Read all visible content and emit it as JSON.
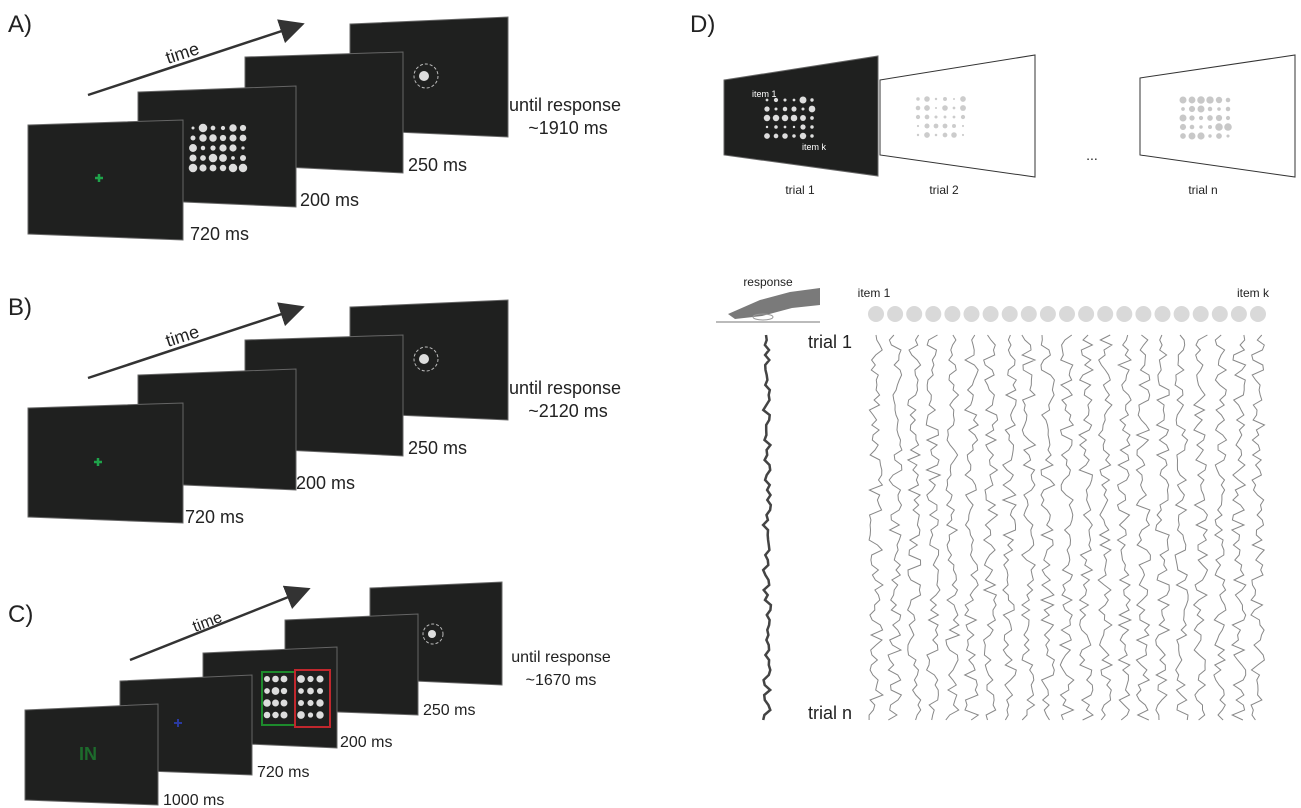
{
  "panels": [
    {
      "label": "A)",
      "arrow_label": "time",
      "durations": [
        "720 ms",
        "200 ms",
        "250 ms"
      ],
      "final": {
        "line1": "until response",
        "line2": "~1910 ms"
      }
    },
    {
      "label": "B)",
      "arrow_label": "time",
      "durations": [
        "720 ms",
        "200 ms",
        "250 ms"
      ],
      "final": {
        "line1": "until response",
        "line2": "~2120 ms"
      }
    },
    {
      "label": "C)",
      "arrow_label": "time",
      "cue": "IN",
      "durations": [
        "1000 ms",
        "720 ms",
        "200 ms",
        "250 ms"
      ],
      "final": {
        "line1": "until response",
        "line2": "~1670 ms"
      }
    }
  ],
  "panel_d": {
    "label": "D)",
    "example_labels": [
      "item 1",
      "item k"
    ],
    "trials": [
      "trial 1",
      "trial 2",
      "trial n"
    ],
    "ellipsis": "...",
    "response": "response",
    "items": [
      "item 1",
      "item k"
    ],
    "rows": [
      "trial 1",
      "trial n"
    ]
  }
}
